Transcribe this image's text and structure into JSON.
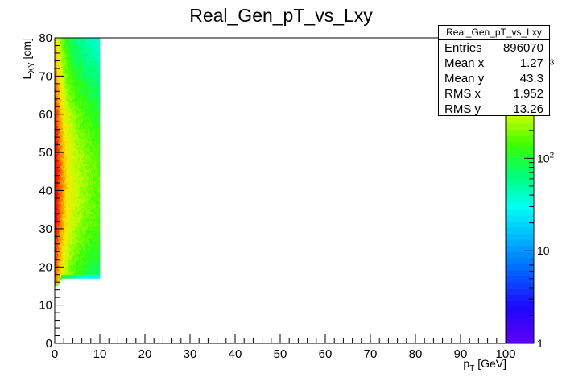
{
  "chart_data": {
    "type": "heatmap",
    "title": "Real_Gen_pT_vs_Lxy",
    "xlabel": "p_T [GeV]",
    "xlabel_main": "p",
    "xlabel_sub": "T",
    "xlabel_unit": " [GeV]",
    "ylabel": "L_XY [cm]",
    "ylabel_main": "L",
    "ylabel_sub": "XY",
    "ylabel_unit": " [cm]",
    "xlim": [
      0,
      100
    ],
    "ylim": [
      0,
      80
    ],
    "x_ticks": [
      "0",
      "10",
      "20",
      "30",
      "40",
      "50",
      "60",
      "70",
      "80",
      "90",
      "100"
    ],
    "y_ticks": [
      "0",
      "10",
      "20",
      "30",
      "40",
      "50",
      "60",
      "70",
      "80"
    ],
    "color_scale": "log",
    "color_ticks": [
      {
        "value": 1,
        "label": "1"
      },
      {
        "value": 10,
        "label": "10"
      },
      {
        "value": 100,
        "label": "10",
        "superscript": "2"
      },
      {
        "value": 1000,
        "label": "10",
        "superscript": "3"
      }
    ],
    "zlim": [
      1,
      2000
    ],
    "density_region": {
      "x_range": [
        0,
        10
      ],
      "y_range": [
        15,
        80
      ],
      "lower_edge_y": [
        14,
        17
      ]
    },
    "stats": {
      "title": "Real_Gen_pT_vs_Lxy",
      "entries": [
        "Entries",
        "896070"
      ],
      "mean_x": [
        "Mean x",
        "1.27"
      ],
      "mean_y": [
        "Mean y",
        "43.3"
      ],
      "rms_x": [
        "RMS x",
        "1.952"
      ],
      "rms_y": [
        "RMS y",
        "13.26"
      ]
    }
  }
}
